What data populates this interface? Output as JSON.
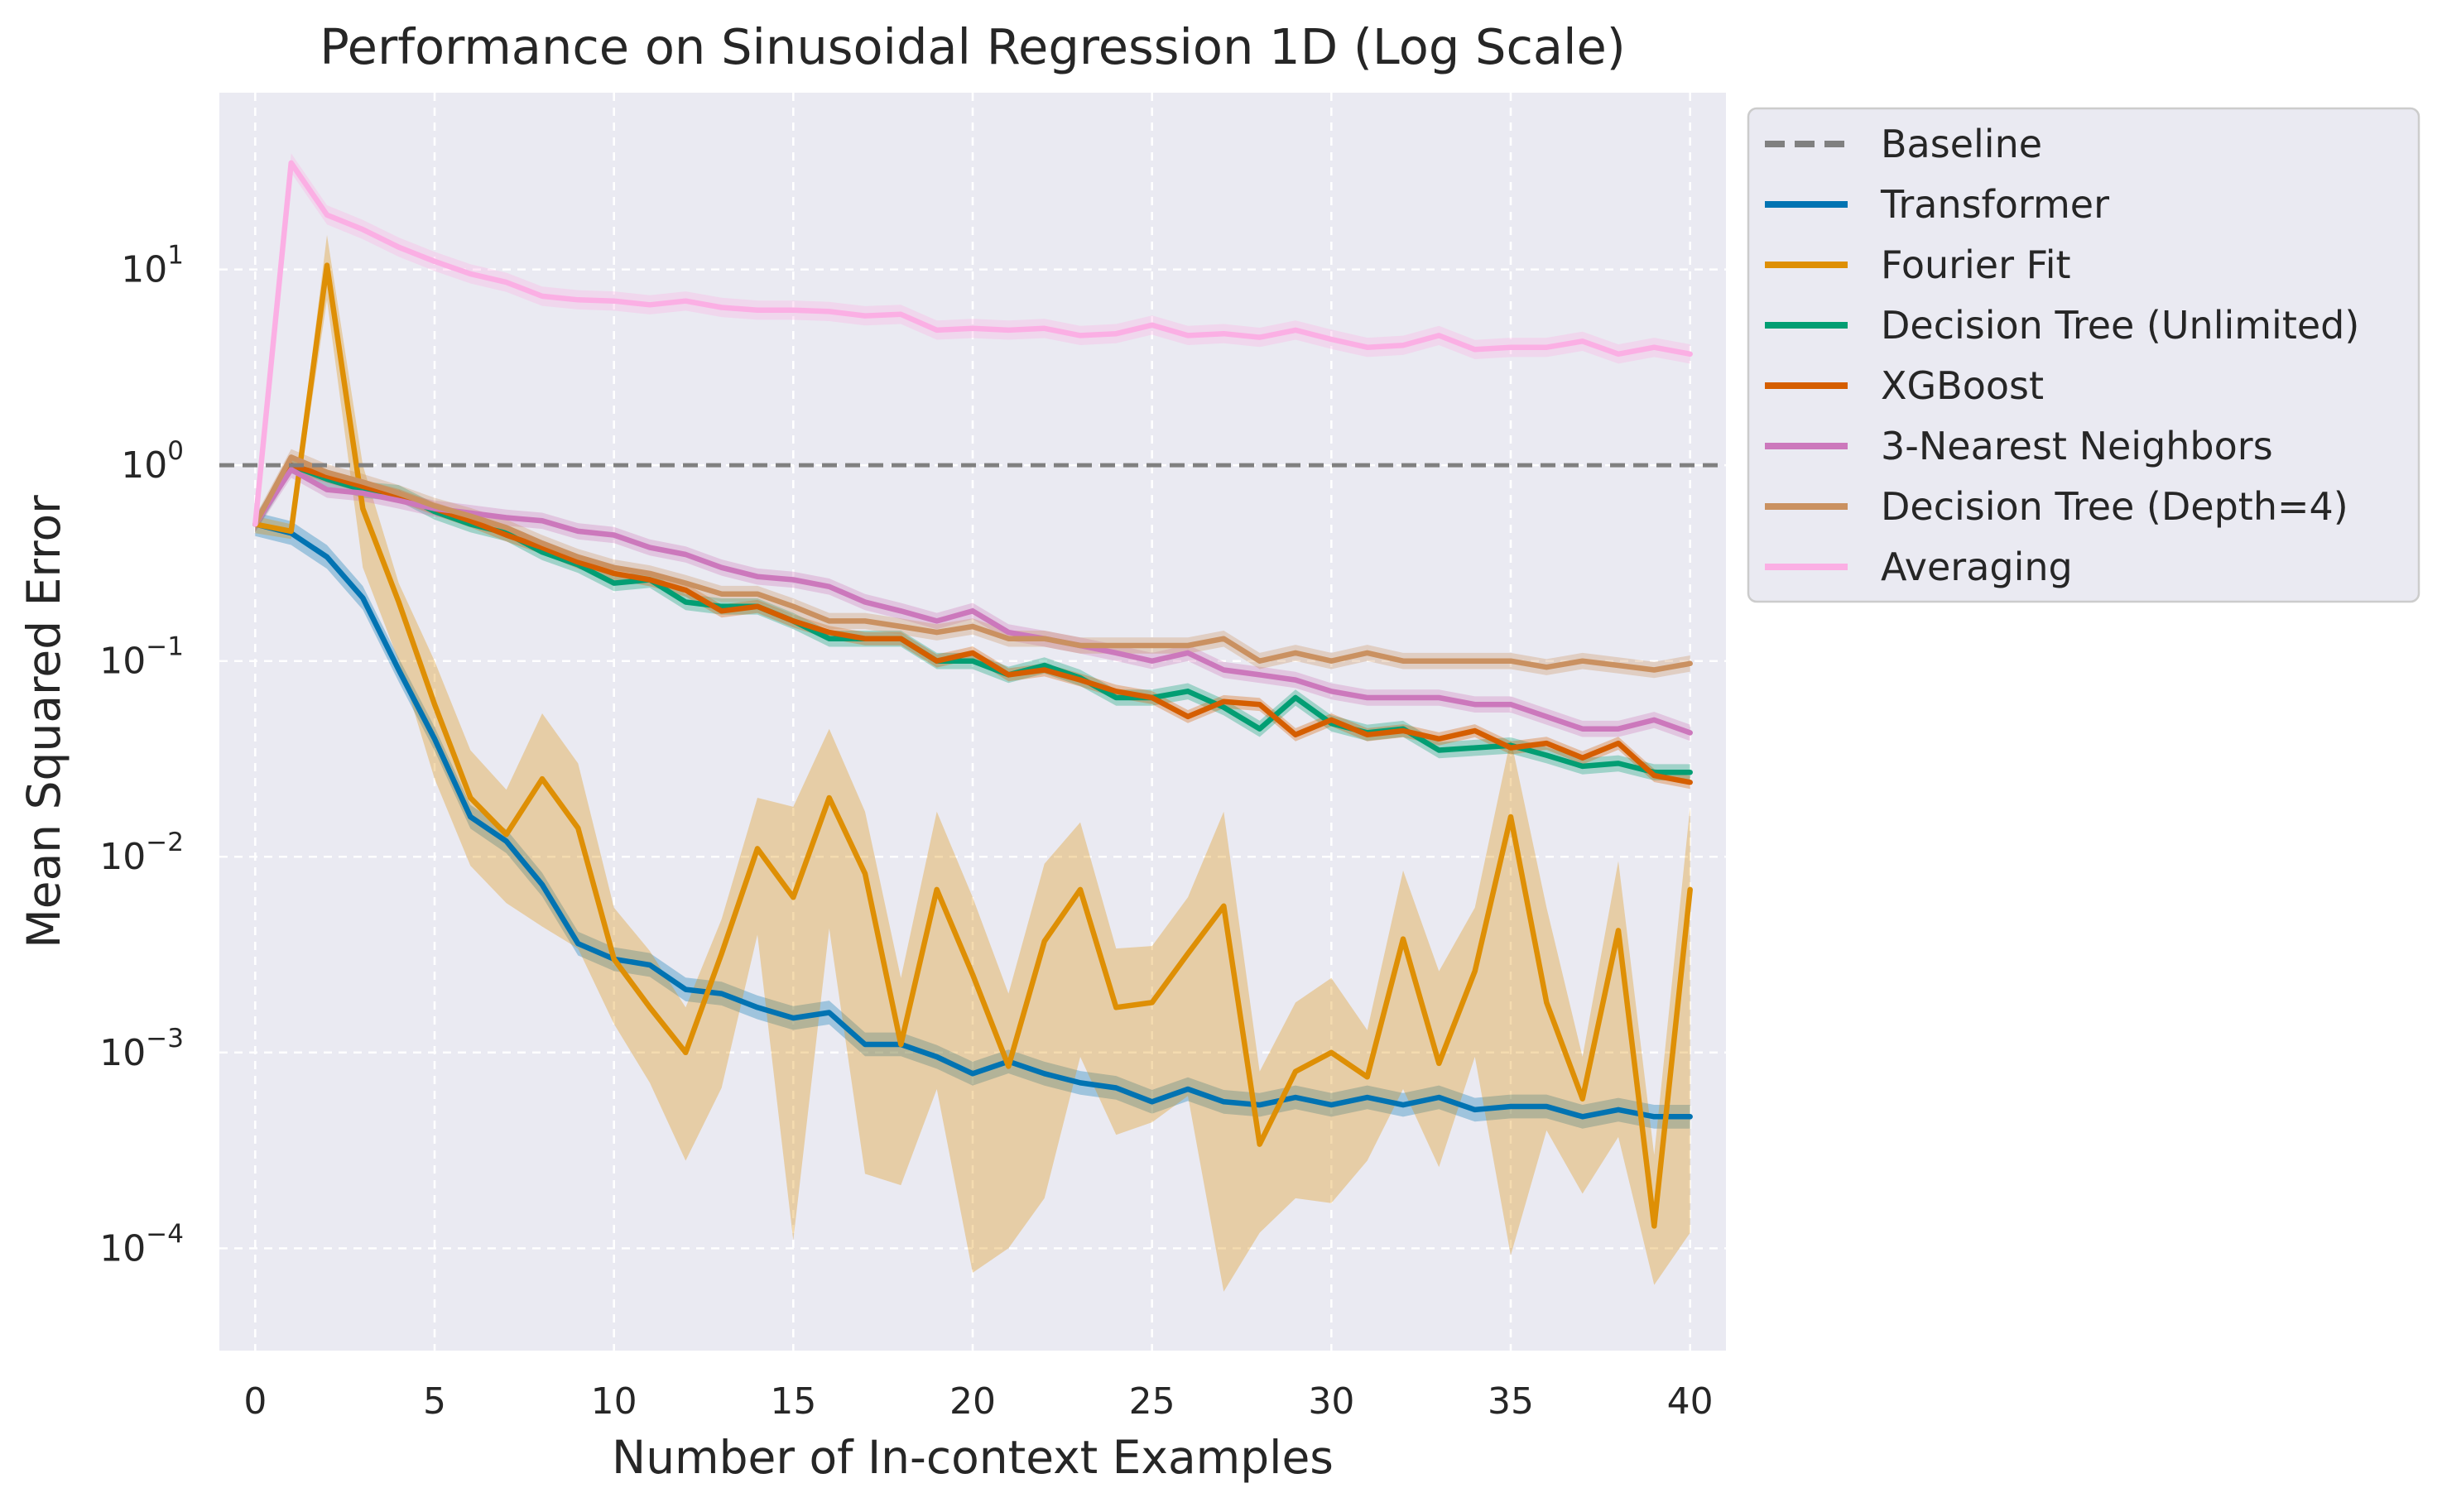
{
  "chart_data": {
    "type": "line",
    "title": "Performance on Sinusoidal Regression 1D (Log Scale)",
    "xlabel": "Number of In-context Examples",
    "ylabel": "Mean Squared Error",
    "yscale": "log",
    "xlim": [
      -1,
      41
    ],
    "ylim": [
      3e-05,
      80
    ],
    "xticks": [
      0,
      5,
      10,
      15,
      20,
      25,
      30,
      35,
      40
    ],
    "yticks": [
      {
        "base": "10",
        "exp": "−4",
        "value": 0.0001
      },
      {
        "base": "10",
        "exp": "−3",
        "value": 0.001
      },
      {
        "base": "10",
        "exp": "−2",
        "value": 0.01
      },
      {
        "base": "10",
        "exp": "−1",
        "value": 0.1
      },
      {
        "base": "10",
        "exp": "0",
        "value": 1
      },
      {
        "base": "10",
        "exp": "1",
        "value": 10
      }
    ],
    "grid": true,
    "legend_position": "outside upper right",
    "baseline": {
      "name": "Baseline",
      "value": 1.0,
      "color": "#808080",
      "style": "dashed"
    },
    "series": [
      {
        "name": "Transformer",
        "color": "#0173b2",
        "values": [
          0.5,
          0.45,
          0.34,
          0.21,
          0.09,
          0.04,
          0.016,
          0.012,
          0.0072,
          0.0036,
          0.003,
          0.0028,
          0.0021,
          0.002,
          0.0017,
          0.0015,
          0.0016,
          0.0011,
          0.0011,
          0.00095,
          0.00078,
          0.0009,
          0.00078,
          0.0007,
          0.00066,
          0.00056,
          0.00065,
          0.00056,
          0.00054,
          0.00059,
          0.00054,
          0.00059,
          0.00054,
          0.00059,
          0.00051,
          0.00053,
          0.00053,
          0.00047,
          0.00051,
          0.00047,
          0.00047
        ],
        "band_factor": 1.15
      },
      {
        "name": "Fourier Fit",
        "color": "#de8f05",
        "values": [
          0.5,
          0.46,
          10.5,
          0.6,
          0.2,
          0.06,
          0.02,
          0.013,
          0.025,
          0.014,
          0.003,
          0.0017,
          0.001,
          0.0032,
          0.011,
          0.0062,
          0.02,
          0.0082,
          0.0011,
          0.0068,
          0.0025,
          0.00085,
          0.0037,
          0.0068,
          0.0017,
          0.0018,
          0.0032,
          0.0056,
          0.00034,
          0.0008,
          0.001,
          0.00075,
          0.0038,
          0.00088,
          0.0026,
          0.016,
          0.0018,
          0.00058,
          0.0042,
          0.00013,
          0.0068
        ],
        "lower": [
          0.45,
          0.42,
          7,
          0.3,
          0.1,
          0.025,
          0.009,
          0.0058,
          0.0044,
          0.0034,
          0.0014,
          0.0007,
          0.00028,
          0.00066,
          0.004,
          0.00011,
          0.0043,
          0.00024,
          0.00021,
          0.00065,
          7.5e-05,
          0.0001,
          0.00018,
          0.00095,
          0.00038,
          0.00044,
          0.0006,
          6e-05,
          0.00012,
          0.00018,
          0.00017,
          0.00028,
          0.00065,
          0.00026,
          0.00095,
          9.2e-05,
          0.0004,
          0.00019,
          0.00037,
          6.5e-05,
          0.00012
        ],
        "upper": [
          0.55,
          0.5,
          15,
          1.0,
          0.25,
          0.1,
          0.035,
          0.022,
          0.054,
          0.03,
          0.0055,
          0.0033,
          0.0017,
          0.0048,
          0.02,
          0.018,
          0.045,
          0.017,
          0.0024,
          0.017,
          0.0062,
          0.002,
          0.0092,
          0.015,
          0.0034,
          0.0035,
          0.0062,
          0.017,
          0.0008,
          0.0018,
          0.0024,
          0.0013,
          0.0085,
          0.0026,
          0.0055,
          0.04,
          0.0055,
          0.00095,
          0.0095,
          0.0003,
          0.018
        ]
      },
      {
        "name": "Decision Tree (Unlimited)",
        "color": "#029e73",
        "values": [
          0.5,
          1.0,
          0.85,
          0.75,
          0.72,
          0.58,
          0.5,
          0.45,
          0.36,
          0.31,
          0.25,
          0.26,
          0.2,
          0.19,
          0.19,
          0.16,
          0.13,
          0.13,
          0.13,
          0.1,
          0.1,
          0.085,
          0.095,
          0.082,
          0.065,
          0.065,
          0.07,
          0.058,
          0.045,
          0.065,
          0.048,
          0.043,
          0.045,
          0.035,
          0.036,
          0.037,
          0.033,
          0.029,
          0.03,
          0.027,
          0.027
        ],
        "band_factor": 1.1
      },
      {
        "name": "XGBoost",
        "color": "#d55e00",
        "values": [
          0.5,
          1.0,
          0.88,
          0.78,
          0.7,
          0.6,
          0.52,
          0.44,
          0.38,
          0.32,
          0.28,
          0.26,
          0.23,
          0.18,
          0.19,
          0.16,
          0.14,
          0.13,
          0.13,
          0.1,
          0.11,
          0.085,
          0.09,
          0.08,
          0.07,
          0.065,
          0.052,
          0.062,
          0.06,
          0.042,
          0.05,
          0.042,
          0.044,
          0.04,
          0.044,
          0.036,
          0.038,
          0.032,
          0.038,
          0.026,
          0.024
        ],
        "band_factor": 1.08
      },
      {
        "name": "3-Nearest Neighbors",
        "color": "#cc78bc",
        "values": [
          0.5,
          0.95,
          0.75,
          0.72,
          0.66,
          0.6,
          0.57,
          0.54,
          0.52,
          0.46,
          0.44,
          0.38,
          0.35,
          0.3,
          0.27,
          0.26,
          0.24,
          0.2,
          0.18,
          0.16,
          0.18,
          0.14,
          0.13,
          0.12,
          0.11,
          0.1,
          0.11,
          0.09,
          0.085,
          0.08,
          0.07,
          0.065,
          0.065,
          0.065,
          0.06,
          0.06,
          0.052,
          0.045,
          0.045,
          0.05,
          0.043
        ],
        "band_factor": 1.1
      },
      {
        "name": "Decision Tree (Depth=4)",
        "color": "#ca9161",
        "values": [
          0.5,
          1.1,
          0.92,
          0.82,
          0.72,
          0.62,
          0.55,
          0.48,
          0.4,
          0.34,
          0.3,
          0.28,
          0.25,
          0.22,
          0.22,
          0.19,
          0.16,
          0.16,
          0.15,
          0.14,
          0.15,
          0.13,
          0.13,
          0.12,
          0.12,
          0.12,
          0.12,
          0.13,
          0.1,
          0.11,
          0.1,
          0.11,
          0.1,
          0.1,
          0.1,
          0.1,
          0.093,
          0.1,
          0.095,
          0.09,
          0.097
        ],
        "band_factor": 1.1
      },
      {
        "name": "Averaging",
        "color": "#fbafe4",
        "values": [
          0.5,
          35,
          19,
          16,
          13,
          11,
          9.5,
          8.6,
          7.3,
          7,
          6.9,
          6.6,
          6.9,
          6.4,
          6.2,
          6.2,
          6.1,
          5.8,
          5.9,
          4.9,
          5,
          4.9,
          5,
          4.6,
          4.7,
          5.2,
          4.6,
          4.7,
          4.5,
          4.9,
          4.4,
          4,
          4.1,
          4.6,
          3.9,
          4,
          4,
          4.3,
          3.7,
          4,
          3.7
        ],
        "band_factor": 1.12
      }
    ]
  }
}
